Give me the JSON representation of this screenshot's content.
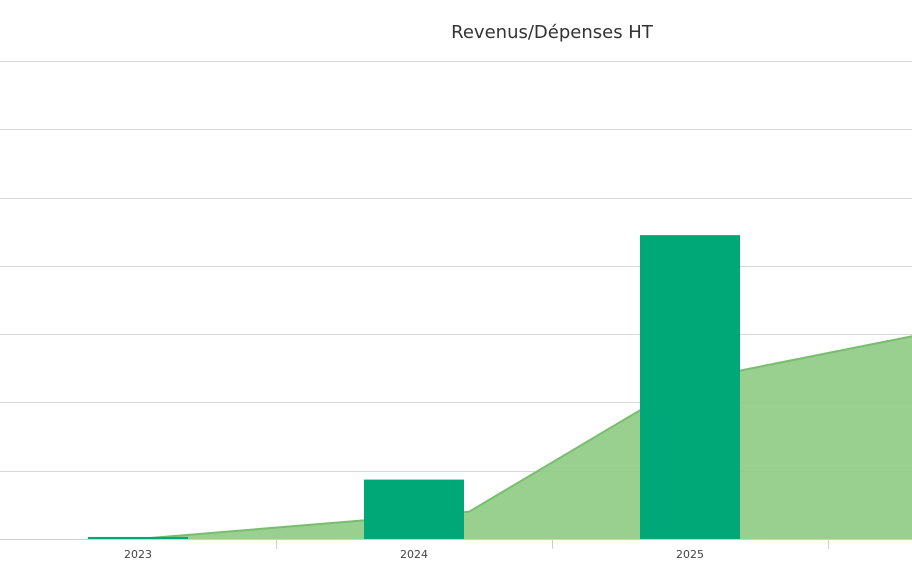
{
  "chart_data": {
    "type": "bar",
    "title": "Revenus/Dépenses HT",
    "xlabel": "",
    "ylabel": "",
    "categories": [
      "2023",
      "2024",
      "2025"
    ],
    "ylim": [
      0,
      7
    ],
    "grid": true,
    "series": [
      {
        "type": "bar",
        "values": [
          0.03,
          0.87,
          4.45
        ],
        "color": "#00a878"
      },
      {
        "type": "area",
        "x": [
          0,
          1.2,
          2,
          3.4
        ],
        "values": [
          0,
          0.4,
          2.32,
          3.45
        ],
        "color": "#8ecb84"
      }
    ]
  }
}
